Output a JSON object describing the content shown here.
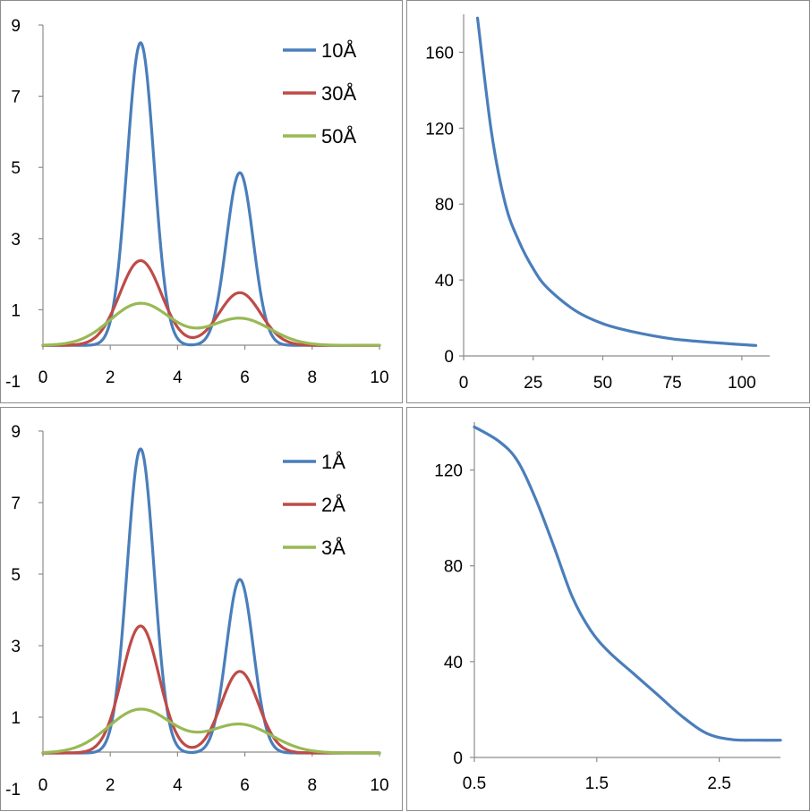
{
  "colors": {
    "blue": "#4a7ebb",
    "red": "#be4b48",
    "green": "#98b954",
    "axis": "#8c8c8c"
  },
  "chart_data": [
    {
      "type": "line",
      "xlim": [
        0,
        10
      ],
      "ylim": [
        -1,
        9
      ],
      "xticks": [
        "0",
        "2",
        "4",
        "6",
        "8",
        "10"
      ],
      "yticks": [
        "-1",
        "1",
        "3",
        "5",
        "7",
        "9"
      ],
      "legend_position": "top-right",
      "series": [
        {
          "name": "10Å",
          "color": "#4a7ebb",
          "peaks": [
            {
              "center": 2.9,
              "height": 8.5,
              "width": 0.4
            },
            {
              "center": 5.85,
              "height": 4.85,
              "width": 0.4
            }
          ]
        },
        {
          "name": "30Å",
          "color": "#be4b48",
          "peaks": [
            {
              "center": 2.9,
              "height": 2.38,
              "width": 0.62
            },
            {
              "center": 5.85,
              "height": 1.48,
              "width": 0.62
            }
          ]
        },
        {
          "name": "50Å",
          "color": "#98b954",
          "peaks": [
            {
              "center": 2.9,
              "height": 1.18,
              "width": 0.9
            },
            {
              "center": 5.85,
              "height": 0.76,
              "width": 0.9
            }
          ]
        }
      ]
    },
    {
      "type": "line",
      "xlim": [
        0,
        110
      ],
      "ylim": [
        0,
        180
      ],
      "xticks": [
        "0",
        "25",
        "50",
        "75",
        "100"
      ],
      "yticks": [
        "0",
        "40",
        "80",
        "120",
        "160"
      ],
      "series": [
        {
          "color": "#4a7ebb",
          "x": [
            5,
            10,
            15,
            20,
            25,
            30,
            40,
            50,
            60,
            75,
            90,
            105
          ],
          "y": [
            178,
            118,
            80,
            60,
            46,
            36,
            24,
            17,
            13,
            9,
            7,
            5.5
          ]
        }
      ]
    },
    {
      "type": "line",
      "xlim": [
        0,
        10
      ],
      "ylim": [
        -1,
        9
      ],
      "xticks": [
        "0",
        "2",
        "4",
        "6",
        "8",
        "10"
      ],
      "yticks": [
        "-1",
        "1",
        "3",
        "5",
        "7",
        "9"
      ],
      "legend_position": "top-right",
      "series": [
        {
          "name": "1Å",
          "color": "#4a7ebb",
          "peaks": [
            {
              "center": 2.9,
              "height": 8.5,
              "width": 0.4
            },
            {
              "center": 5.85,
              "height": 4.85,
              "width": 0.4
            }
          ]
        },
        {
          "name": "2Å",
          "color": "#be4b48",
          "peaks": [
            {
              "center": 2.9,
              "height": 3.55,
              "width": 0.55
            },
            {
              "center": 5.85,
              "height": 2.28,
              "width": 0.55
            }
          ]
        },
        {
          "name": "3Å",
          "color": "#98b954",
          "peaks": [
            {
              "center": 2.9,
              "height": 1.22,
              "width": 0.95
            },
            {
              "center": 5.85,
              "height": 0.8,
              "width": 0.95
            }
          ]
        }
      ]
    },
    {
      "type": "line",
      "xlim": [
        0.5,
        3.0
      ],
      "ylim": [
        0,
        140
      ],
      "xticks": [
        "0.5",
        "1.5",
        "2.5"
      ],
      "yticks": [
        "0",
        "40",
        "80",
        "120"
      ],
      "series": [
        {
          "color": "#4a7ebb",
          "x": [
            0.5,
            0.7,
            0.85,
            1.0,
            1.15,
            1.3,
            1.45,
            1.6,
            1.8,
            2.0,
            2.2,
            2.4,
            2.6,
            2.8,
            3.0
          ],
          "y": [
            138,
            132,
            124,
            108,
            88,
            67,
            53,
            44,
            35,
            26,
            17,
            10,
            7.5,
            7.2,
            7.2
          ]
        }
      ]
    }
  ]
}
